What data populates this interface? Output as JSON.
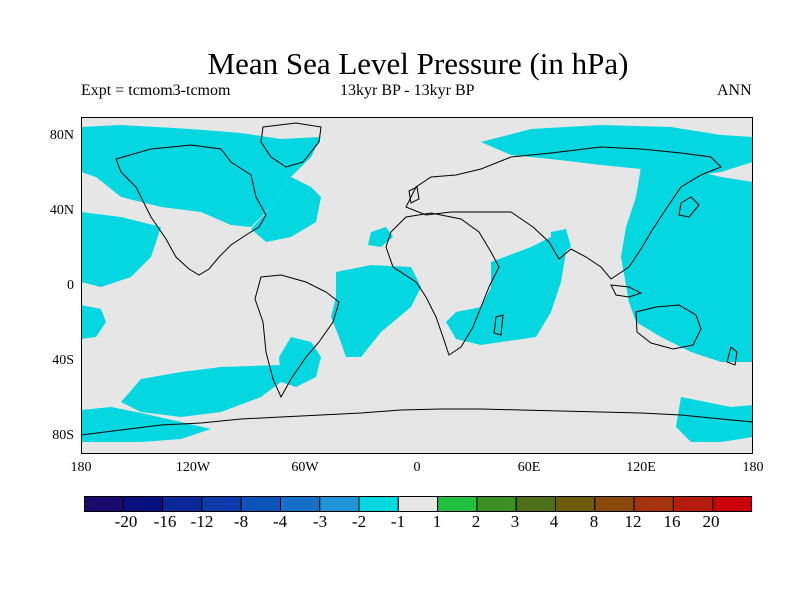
{
  "title": "Mean Sea Level Pressure (in hPa)",
  "experiment_label": "Expt = tcmom3-tcmom",
  "period_label": "13kyr BP - 13kyr BP",
  "season_label": "ANN",
  "y_ticks": [
    "80N",
    "40N",
    "0",
    "40S",
    "80S"
  ],
  "x_ticks": [
    "180",
    "120W",
    "60W",
    "0",
    "60E",
    "120E",
    "180"
  ],
  "colorbar": {
    "labels": [
      "-20",
      "-16",
      "-12",
      "-8",
      "-4",
      "-3",
      "-2",
      "-1",
      "1",
      "2",
      "3",
      "4",
      "8",
      "12",
      "16",
      "20"
    ],
    "colors": [
      "#1b0a6e",
      "#0a0f80",
      "#0b2a98",
      "#0d3aa8",
      "#1053b8",
      "#1670c7",
      "#2095d6",
      "#05d7e0",
      "#e6e6e6",
      "#24bf3f",
      "#3c8f25",
      "#4d6f15",
      "#6b5a10",
      "#8a4a0c",
      "#a3320d",
      "#b51c0e",
      "#c8060a"
    ]
  },
  "colors": {
    "land_ocean_neutral": "#e6e6e6",
    "negative_anomaly": "#05d7e0",
    "coast": "#000000"
  }
}
